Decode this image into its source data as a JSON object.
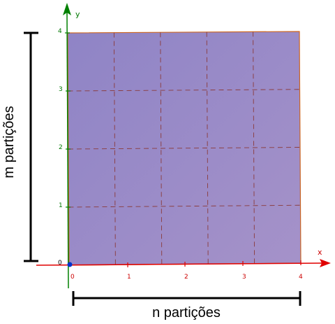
{
  "axes": {
    "x_label": "x",
    "y_label": "y",
    "origin_label": "0",
    "x_ticks": [
      "0",
      "1",
      "2",
      "3",
      "4"
    ],
    "y_ticks": [
      "1",
      "2",
      "3",
      "4"
    ],
    "x_range": [
      0,
      4
    ],
    "y_range": [
      0,
      4
    ]
  },
  "grid": {
    "columns": 5,
    "rows": 4
  },
  "brackets": {
    "horizontal_label": "n partições",
    "vertical_label": "m partições"
  },
  "colors": {
    "fill": "#9686c6",
    "x_axis": "#e00000",
    "y_axis": "#008000",
    "grid": "#8a3a3a",
    "border": "#cc6622",
    "bracket": "#000000",
    "origin_point": "#0033cc"
  }
}
